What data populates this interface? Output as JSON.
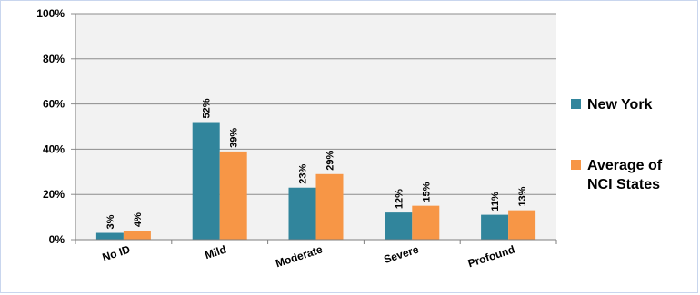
{
  "chart_data": {
    "type": "bar",
    "categories": [
      "No ID",
      "Mild",
      "Moderate",
      "Severe",
      "Profound"
    ],
    "series": [
      {
        "name": "New York",
        "color": "#31859c",
        "values": [
          3,
          52,
          23,
          12,
          11
        ],
        "labels": [
          "3%",
          "52%",
          "23%",
          "12%",
          "11%"
        ]
      },
      {
        "name": "Average of NCI States",
        "color": "#f79646",
        "values": [
          4,
          39,
          29,
          15,
          13
        ],
        "labels": [
          "4%",
          "39%",
          "29%",
          "15%",
          "13%"
        ]
      }
    ],
    "y_ticks": [
      "0%",
      "20%",
      "40%",
      "60%",
      "80%",
      "100%"
    ],
    "ylim": [
      0,
      100
    ],
    "legend_position": "right",
    "legend_lines": [
      [
        "New York"
      ],
      [
        "Average of",
        "NCI States"
      ]
    ],
    "grid": true,
    "title": "",
    "xlabel": "",
    "ylabel": ""
  }
}
